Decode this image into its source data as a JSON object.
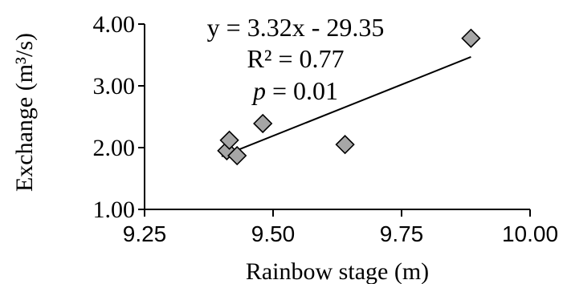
{
  "chart_data": {
    "type": "scatter",
    "xlabel": "Rainbow stage (m)",
    "ylabel": "Exchange (m³/s)",
    "xlim": [
      9.25,
      10.0
    ],
    "ylim": [
      1.0,
      4.0
    ],
    "x_ticks": [
      "9.25",
      "9.50",
      "9.75",
      "10.00"
    ],
    "x_tick_values": [
      9.25,
      9.5,
      9.75,
      10.0
    ],
    "y_ticks": [
      "1.00",
      "2.00",
      "3.00",
      "4.00"
    ],
    "y_tick_values": [
      1.0,
      2.0,
      3.0,
      4.0
    ],
    "grid": false,
    "legend": "none",
    "series": [
      {
        "marker": "diamond",
        "points": [
          {
            "x": 9.41,
            "y": 1.95
          },
          {
            "x": 9.415,
            "y": 2.12
          },
          {
            "x": 9.43,
            "y": 1.87
          },
          {
            "x": 9.48,
            "y": 2.39
          },
          {
            "x": 9.64,
            "y": 2.05
          },
          {
            "x": 9.885,
            "y": 3.77
          }
        ]
      }
    ],
    "trendline": {
      "slope": 3.32,
      "intercept": -29.35,
      "x_start": 9.4,
      "x_end": 9.885
    },
    "annotations": {
      "equation": "y = 3.32x - 29.35",
      "r_squared": "R² = 0.77",
      "p_label": "p",
      "p_value": " = 0.01"
    },
    "colors": {
      "marker_fill": "#a6a6a6",
      "marker_stroke": "#000000",
      "axis": "#000000",
      "trendline": "#000000"
    }
  }
}
